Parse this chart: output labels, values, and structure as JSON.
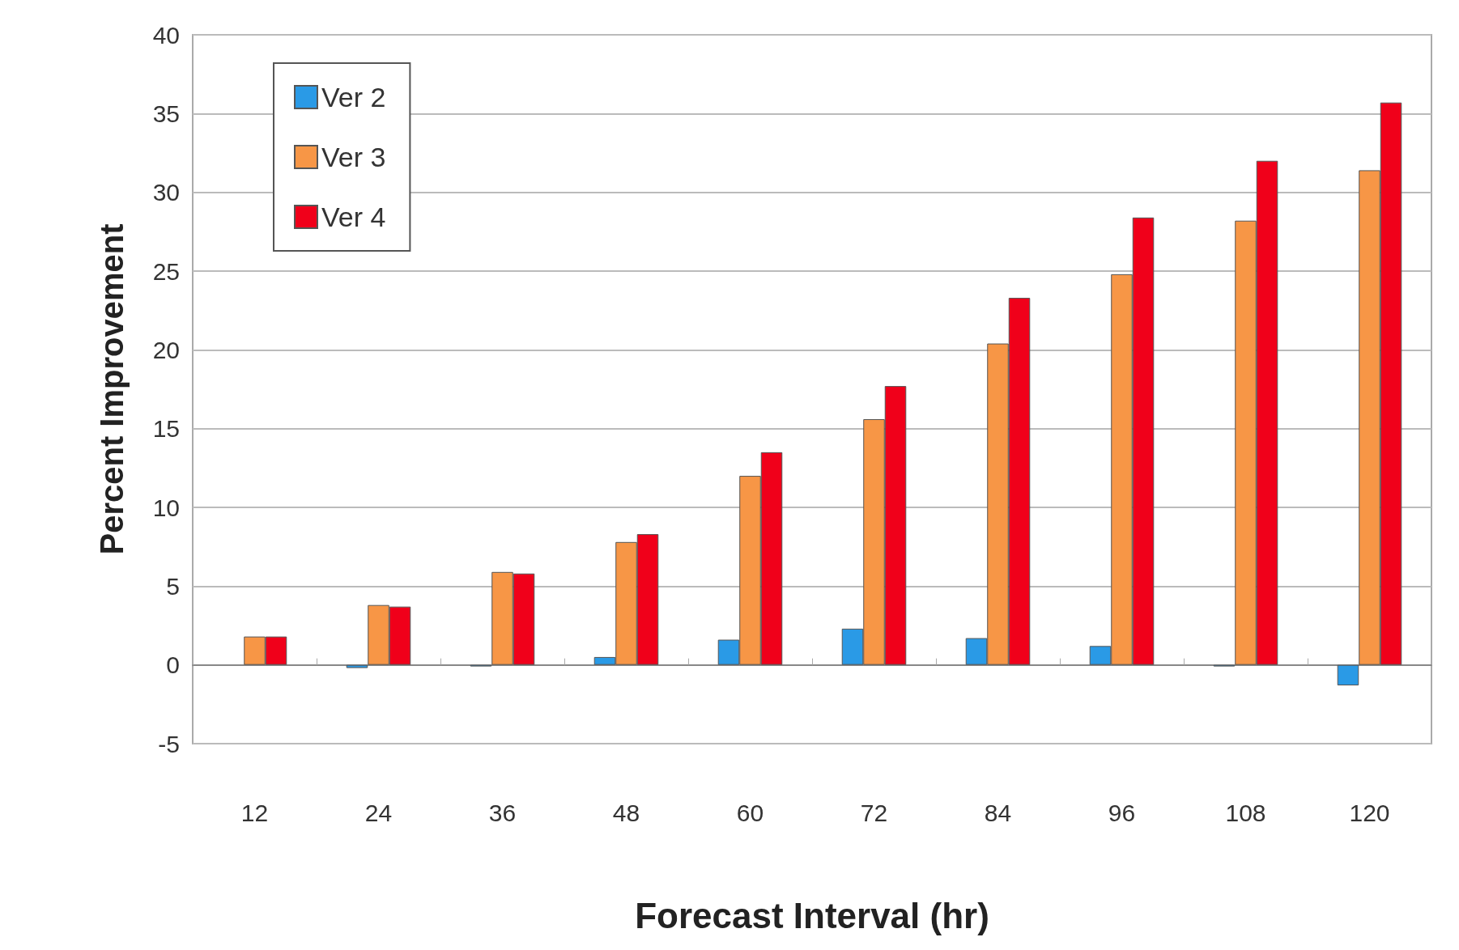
{
  "chart_data": {
    "type": "bar",
    "xlabel": "Forecast Interval (hr)",
    "ylabel": "Percent Improvement",
    "categories": [
      "12",
      "24",
      "36",
      "48",
      "60",
      "72",
      "84",
      "96",
      "108",
      "120"
    ],
    "series": [
      {
        "name": "Ver 2",
        "color": "#2a9ae6",
        "values": [
          null,
          -0.2,
          -0.1,
          0.5,
          1.6,
          2.3,
          1.7,
          1.2,
          -0.1,
          -1.3
        ]
      },
      {
        "name": "Ver 3",
        "color": "#f79646",
        "values": [
          1.8,
          3.8,
          5.9,
          7.8,
          12.0,
          15.6,
          20.4,
          24.8,
          28.2,
          31.4
        ]
      },
      {
        "name": "Ver 4",
        "color": "#f0001a",
        "values": [
          1.8,
          3.7,
          5.8,
          8.3,
          13.5,
          17.7,
          23.3,
          28.4,
          32.0,
          35.7
        ]
      }
    ],
    "ylim": [
      -5,
      40
    ],
    "yticks": [
      -5,
      0,
      5,
      10,
      15,
      20,
      25,
      30,
      35,
      40
    ],
    "grid": "y",
    "legend": "top left"
  }
}
